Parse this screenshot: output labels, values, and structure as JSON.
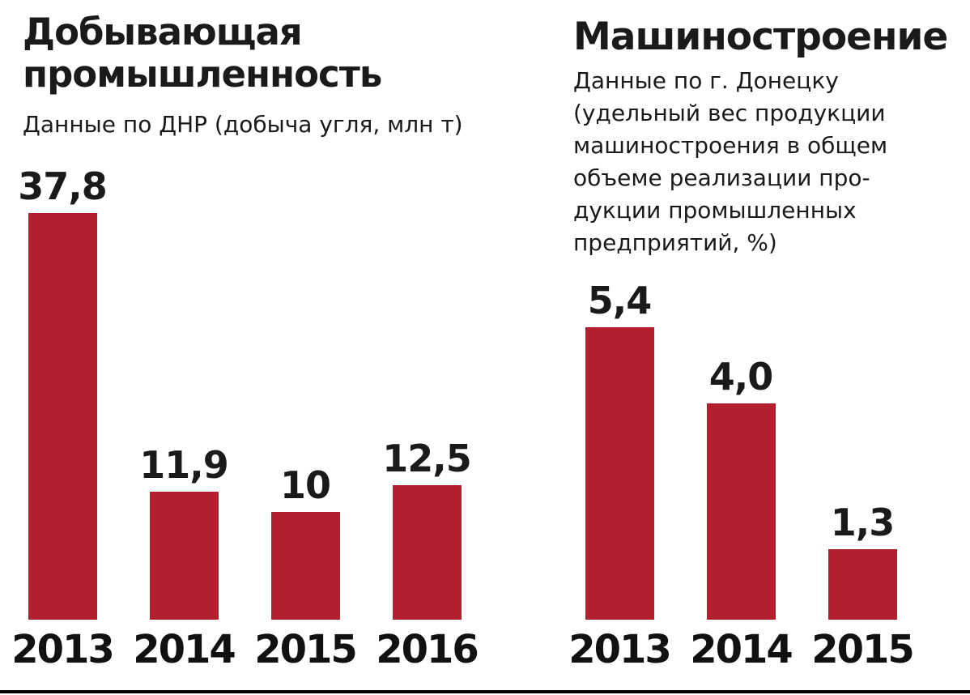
{
  "accent_color": "#b2202d",
  "page": {
    "background": "#ffffff",
    "bottom_rule_color": "#000000"
  },
  "chart_data": [
    {
      "type": "bar",
      "title": "Добывающая промышленность",
      "title_lines": [
        "Добывающая",
        "промышленность"
      ],
      "subtitle": "Данные по ДНР (добыча угля, млн т)",
      "categories": [
        "2013",
        "2014",
        "2015",
        "2016"
      ],
      "values": [
        37.8,
        11.9,
        10,
        12.5
      ],
      "value_labels": [
        "37,8",
        "11,9",
        "10",
        "12,5"
      ],
      "unit": "млн т",
      "ylim": [
        0,
        37.8
      ],
      "bar_color": "#b2202d",
      "grid": false,
      "legend": "none"
    },
    {
      "type": "bar",
      "title": "Машиностроение",
      "subtitle": "Данные по г. Донецку (удельный вес продукции машиностроения в общем объеме реализации продукции промышленных предприятий, %)",
      "subtitle_lines": [
        "Данные по г. Донецку",
        "(удельный вес продукции",
        "машиностроения в общем",
        "объеме реализации про-",
        "дукции промышленных",
        "предприятий, %)"
      ],
      "categories": [
        "2013",
        "2014",
        "2015"
      ],
      "values": [
        5.4,
        4.0,
        1.3
      ],
      "value_labels": [
        "5,4",
        "4,0",
        "1,3"
      ],
      "unit": "%",
      "ylim": [
        0,
        5.4
      ],
      "bar_color": "#b2202d",
      "grid": false,
      "legend": "none"
    }
  ]
}
